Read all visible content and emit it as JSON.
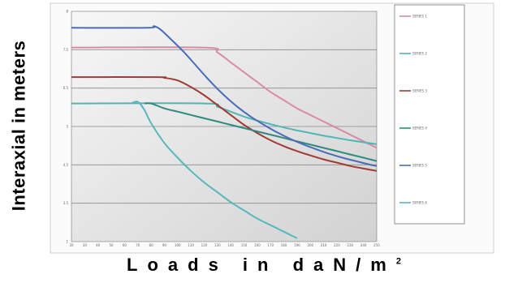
{
  "chart_data": {
    "type": "line",
    "title": "",
    "ylabel": "Interaxial in meters",
    "xlabel": "Loads in daN/m",
    "xlabel_sup": "2",
    "xlim": [
      20,
      250
    ],
    "ylim": [
      1,
      8
    ],
    "y_ticks": [
      "8",
      "7.5",
      "6.5",
      "5",
      "4.5",
      "3.5",
      "1"
    ],
    "x_ticks": [
      20,
      30,
      40,
      50,
      60,
      70,
      80,
      90,
      100,
      110,
      120,
      130,
      140,
      150,
      160,
      170,
      180,
      190,
      200,
      210,
      220,
      230,
      240,
      250
    ],
    "grid": true,
    "legend_position": "right",
    "series": [
      {
        "name": "SERIES 1",
        "color": "#d98aa8",
        "x": [
          20,
          120,
          130,
          140,
          150,
          160,
          170,
          180,
          190,
          200,
          210,
          220,
          230,
          240,
          250
        ],
        "y": [
          6.9,
          6.9,
          6.75,
          6.45,
          6.15,
          5.85,
          5.55,
          5.3,
          5.05,
          4.85,
          4.65,
          4.45,
          4.25,
          4.05,
          3.85
        ]
      },
      {
        "name": "SERIES 2",
        "color": "#4fb5b5",
        "x": [
          20,
          120,
          130,
          140,
          150,
          160,
          170,
          180,
          190,
          200,
          210,
          220,
          230,
          240,
          250
        ],
        "y": [
          5.2,
          5.2,
          5.1,
          4.95,
          4.8,
          4.68,
          4.57,
          4.47,
          4.38,
          4.3,
          4.22,
          4.15,
          4.08,
          4.02,
          3.96
        ]
      },
      {
        "name": "SERIES 3",
        "color": "#a03a34",
        "x": [
          20,
          85,
          90,
          100,
          110,
          120,
          130,
          140,
          150,
          160,
          170,
          180,
          190,
          200,
          210,
          220,
          230,
          240,
          250
        ],
        "y": [
          6.0,
          6.0,
          5.98,
          5.9,
          5.7,
          5.45,
          5.15,
          4.85,
          4.55,
          4.3,
          4.08,
          3.9,
          3.75,
          3.62,
          3.5,
          3.4,
          3.3,
          3.22,
          3.15
        ]
      },
      {
        "name": "SERIES 4",
        "color": "#2e8a7e",
        "x": [
          75,
          80,
          90,
          100,
          110,
          120,
          130,
          140,
          150,
          160,
          170,
          180,
          190,
          200,
          210,
          220,
          230,
          240,
          250
        ],
        "y": [
          5.2,
          5.2,
          5.05,
          4.95,
          4.85,
          4.75,
          4.65,
          4.55,
          4.45,
          4.35,
          4.25,
          4.15,
          4.05,
          3.95,
          3.85,
          3.75,
          3.65,
          3.55,
          3.45
        ]
      },
      {
        "name": "SERIES 5",
        "color": "#4a6cb8",
        "x": [
          20,
          77,
          82,
          87,
          95,
          105,
          115,
          125,
          135,
          145,
          155,
          165,
          175,
          185,
          195,
          205,
          215,
          225,
          235,
          245,
          250
        ],
        "y": [
          7.5,
          7.5,
          7.55,
          7.45,
          7.15,
          6.75,
          6.3,
          5.85,
          5.45,
          5.1,
          4.8,
          4.55,
          4.32,
          4.12,
          3.95,
          3.8,
          3.66,
          3.54,
          3.44,
          3.34,
          3.3
        ]
      },
      {
        "name": "SERIES 6",
        "color": "#56b8bc",
        "x": [
          65,
          70,
          75,
          80,
          90,
          100,
          110,
          120,
          130,
          140,
          150,
          160,
          170,
          180,
          190
        ],
        "y": [
          5.2,
          5.25,
          5.0,
          4.6,
          4.0,
          3.55,
          3.15,
          2.8,
          2.5,
          2.2,
          1.95,
          1.7,
          1.5,
          1.3,
          1.1
        ]
      }
    ]
  }
}
